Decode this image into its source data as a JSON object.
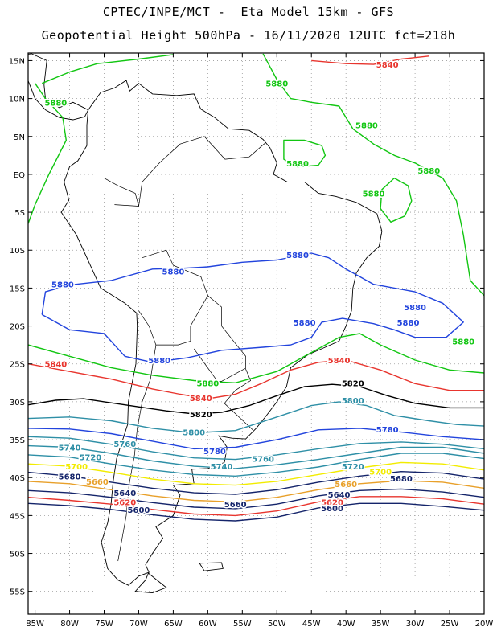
{
  "title_line1": "CPTEC/INPE/MCT -  Eta Model 15km - GFS",
  "title_line2": "Geopotential Height 500hPa - 16/11/2020 12UTC fct=218h",
  "map": {
    "lon_range": [
      -86,
      -20
    ],
    "lat_range": [
      -58,
      16
    ],
    "lon_ticks": [
      "85W",
      "80W",
      "75W",
      "70W",
      "65W",
      "60W",
      "55W",
      "50W",
      "45W",
      "40W",
      "35W",
      "30W",
      "25W",
      "20W"
    ],
    "lat_ticks": [
      "15N",
      "10N",
      "5N",
      "EQ",
      "5S",
      "10S",
      "15S",
      "20S",
      "25S",
      "30S",
      "35S",
      "40S",
      "45S",
      "50S",
      "55S"
    ]
  },
  "contours": [
    {
      "value": "5840",
      "color": "#e8352e",
      "labels": [
        [
          -34,
          14.5
        ],
        [
          -82,
          -25
        ]
      ]
    },
    {
      "value": "5880",
      "color": "#12c612",
      "labels": [
        [
          -50,
          12
        ],
        [
          -82,
          9.5
        ],
        [
          -37,
          6.5
        ],
        [
          -47,
          1.5
        ],
        [
          -28,
          0.5
        ],
        [
          -36,
          -2.5
        ],
        [
          -60,
          -27.5
        ],
        [
          -23,
          -22
        ]
      ]
    },
    {
      "value": "5880",
      "color": "#2244dd",
      "labels": [
        [
          -81,
          -14.5
        ],
        [
          -65,
          -12.8
        ],
        [
          -47,
          -10.6
        ],
        [
          -30,
          -17.5
        ],
        [
          -31,
          -19.5
        ],
        [
          -46,
          -19.5
        ],
        [
          -67,
          -24.5
        ]
      ]
    },
    {
      "value": "5840",
      "color": "#e8352e",
      "labels": [
        [
          -61,
          -29.5
        ],
        [
          -41,
          -24.5
        ]
      ]
    },
    {
      "value": "5820",
      "color": "#000000",
      "labels": [
        [
          -39,
          -27.5
        ],
        [
          -61,
          -31.6
        ]
      ]
    },
    {
      "value": "5800",
      "color": "#2e8fa6",
      "labels": [
        [
          -39,
          -29.8
        ],
        [
          -62,
          -34
        ]
      ]
    },
    {
      "value": "5780",
      "color": "#2244dd",
      "labels": [
        [
          -34,
          -33.6
        ],
        [
          -59,
          -36.5
        ]
      ]
    },
    {
      "value": "5760",
      "color": "#2e8fa6",
      "labels": [
        [
          -72,
          -35.5
        ],
        [
          -52,
          -37.5
        ]
      ]
    },
    {
      "value": "5740",
      "color": "#2e8fa6",
      "labels": [
        [
          -80,
          -36
        ],
        [
          -58,
          -38.5
        ]
      ]
    },
    {
      "value": "5720",
      "color": "#2e8fa6",
      "labels": [
        [
          -77,
          -37.3
        ],
        [
          -39,
          -38.5
        ]
      ]
    },
    {
      "value": "5700",
      "color": "#f2ec00",
      "labels": [
        [
          -79,
          -38.5
        ],
        [
          -35,
          -39.2
        ]
      ]
    },
    {
      "value": "5680",
      "color": "#14246a",
      "labels": [
        [
          -80,
          -39.8
        ],
        [
          -32,
          -40.1
        ]
      ]
    },
    {
      "value": "5660",
      "color": "#e8a02a",
      "labels": [
        [
          -76,
          -40.5
        ],
        [
          -40,
          -40.8
        ]
      ]
    },
    {
      "value": "5640",
      "color": "#14246a",
      "labels": [
        [
          -72,
          -42
        ],
        [
          -41,
          -42.2
        ]
      ]
    },
    {
      "value": "5620",
      "color": "#e8352e",
      "labels": [
        [
          -72,
          -43.2
        ],
        [
          -42,
          -43.2
        ]
      ]
    },
    {
      "value": "5600",
      "color": "#14246a",
      "labels": [
        [
          -70,
          -44.2
        ],
        [
          -42,
          -44
        ]
      ]
    },
    {
      "value": "5660",
      "color": "#14246a",
      "labels": [
        [
          -56,
          -43.5
        ]
      ]
    }
  ]
}
